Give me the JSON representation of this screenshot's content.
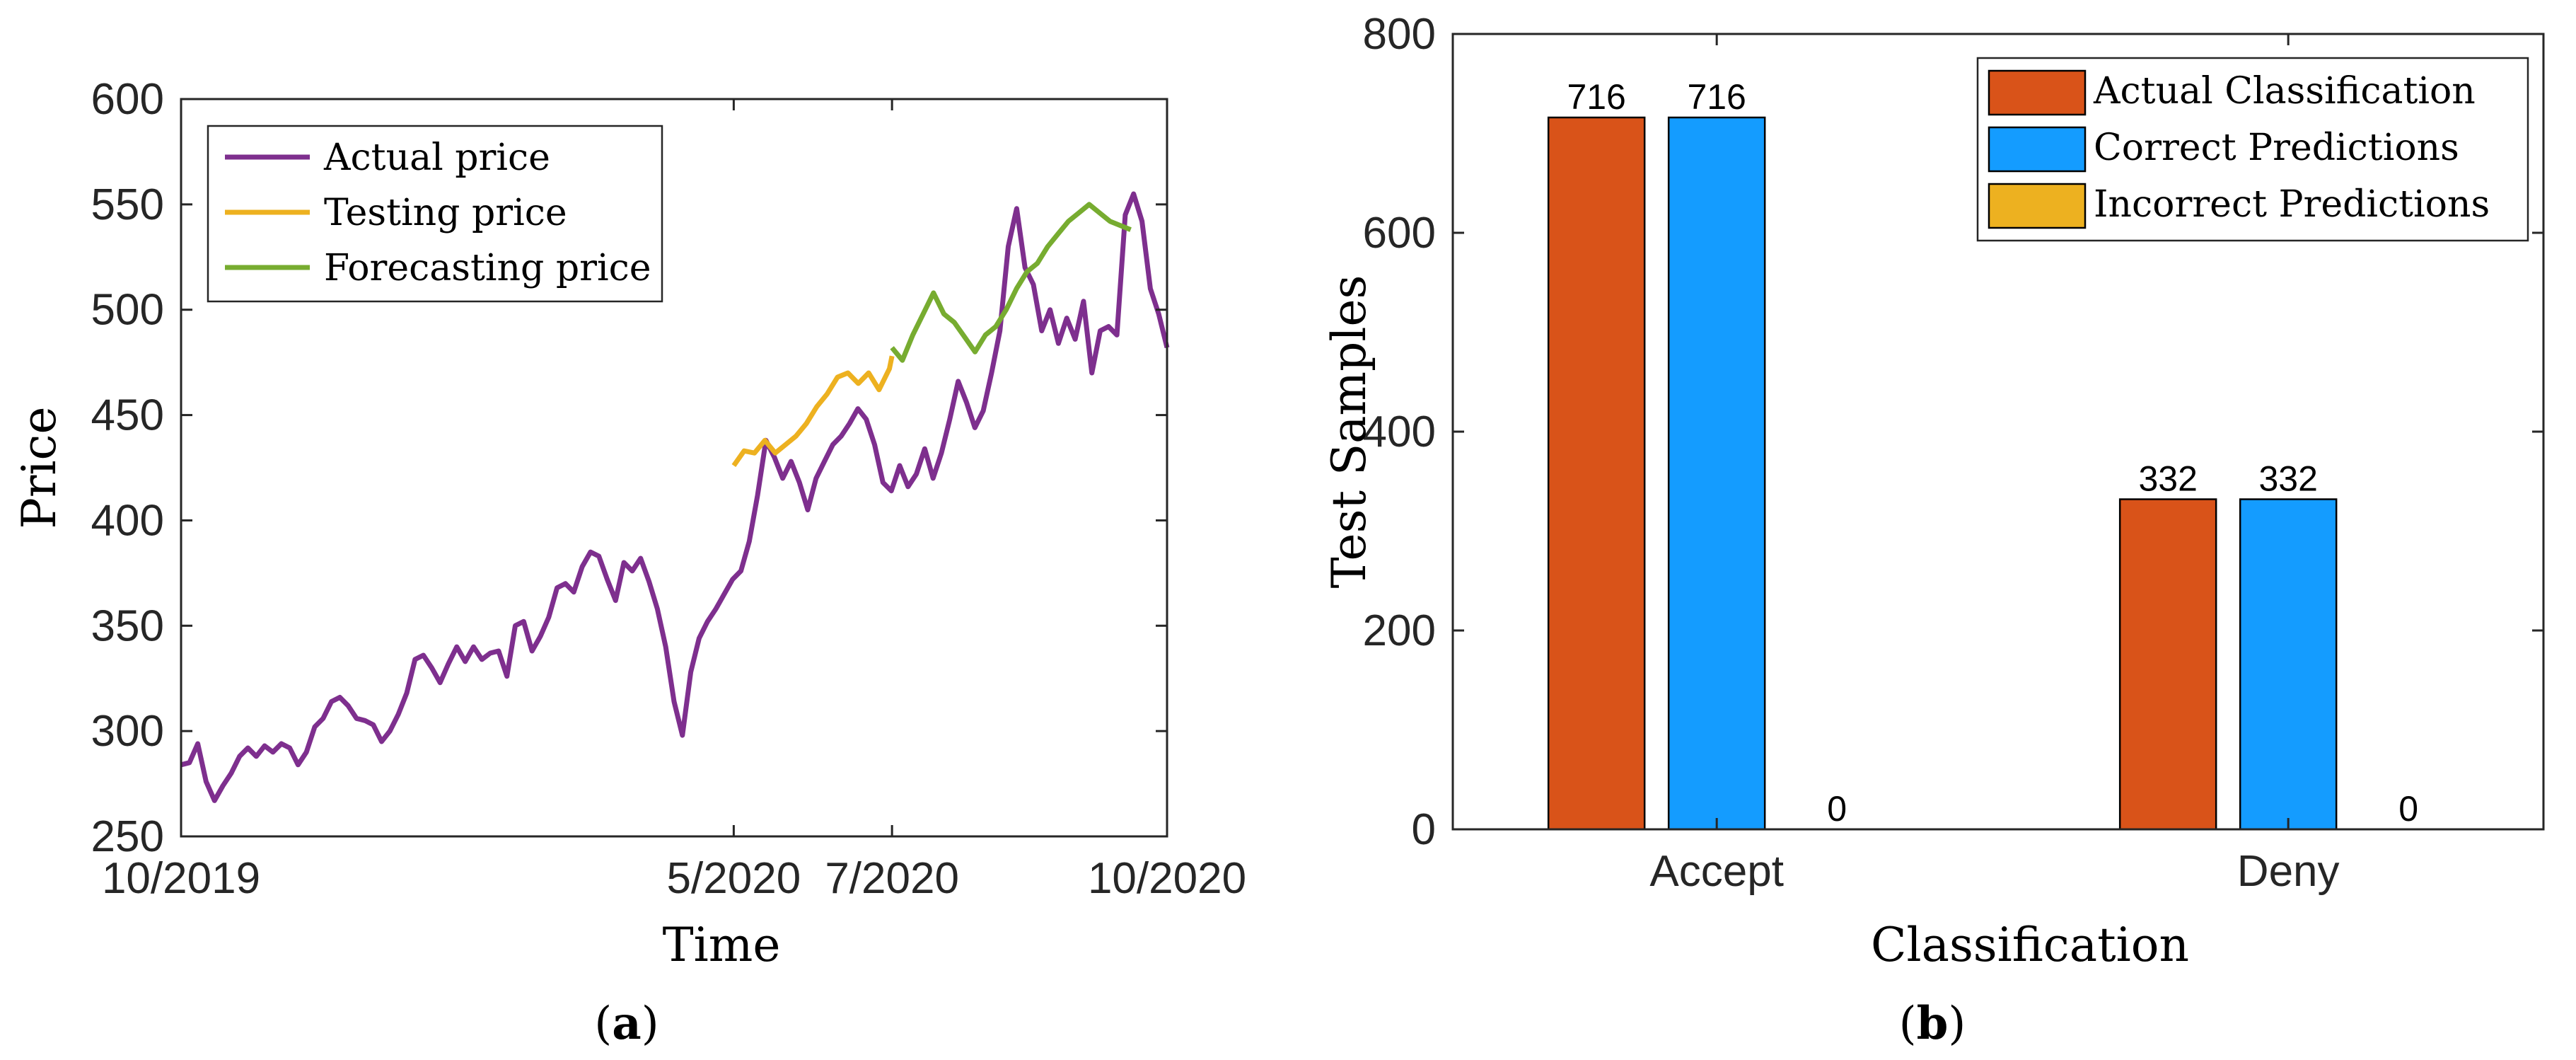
{
  "chart_data": [
    {
      "panel": "(a)",
      "panel_letter": "a",
      "type": "line",
      "xlabel": "Time",
      "ylabel": "Price",
      "ylim": [
        250,
        600
      ],
      "yticks": [
        250,
        300,
        350,
        400,
        450,
        500,
        550,
        600
      ],
      "xlim": [
        "2019-10",
        "2020-10"
      ],
      "xticks": [
        {
          "label": "10/2019",
          "date": "2019-10"
        },
        {
          "label": "5/2020",
          "date": "2020-05"
        },
        {
          "label": "7/2020",
          "date": "2020-07"
        },
        {
          "label": "10/2020",
          "date": "2020-10"
        }
      ],
      "grid": false,
      "legend_position": "top-left",
      "series": [
        {
          "name": "Actual price",
          "color": "#7E2F8E",
          "points": [
            [
              "2019-10-01",
              284
            ],
            [
              "2019-10-05",
              285
            ],
            [
              "2019-10-09",
              294
            ],
            [
              "2019-10-13",
              276
            ],
            [
              "2019-10-17",
              267
            ],
            [
              "2019-10-21",
              274
            ],
            [
              "2019-10-25",
              280
            ],
            [
              "2019-10-29",
              288
            ],
            [
              "2019-11-02",
              292
            ],
            [
              "2019-11-06",
              288
            ],
            [
              "2019-11-10",
              293
            ],
            [
              "2019-11-14",
              290
            ],
            [
              "2019-11-18",
              294
            ],
            [
              "2019-11-22",
              292
            ],
            [
              "2019-11-26",
              284
            ],
            [
              "2019-11-30",
              290
            ],
            [
              "2019-12-04",
              302
            ],
            [
              "2019-12-08",
              306
            ],
            [
              "2019-12-12",
              314
            ],
            [
              "2019-12-16",
              316
            ],
            [
              "2019-12-20",
              312
            ],
            [
              "2019-12-24",
              306
            ],
            [
              "2019-12-28",
              305
            ],
            [
              "2020-01-01",
              303
            ],
            [
              "2020-01-05",
              295
            ],
            [
              "2020-01-09",
              300
            ],
            [
              "2020-01-13",
              308
            ],
            [
              "2020-01-17",
              318
            ],
            [
              "2020-01-21",
              334
            ],
            [
              "2020-01-25",
              336
            ],
            [
              "2020-01-29",
              330
            ],
            [
              "2020-02-02",
              323
            ],
            [
              "2020-02-06",
              332
            ],
            [
              "2020-02-10",
              340
            ],
            [
              "2020-02-14",
              333
            ],
            [
              "2020-02-18",
              340
            ],
            [
              "2020-02-22",
              334
            ],
            [
              "2020-02-26",
              337
            ],
            [
              "2020-03-01",
              338
            ],
            [
              "2020-03-05",
              326
            ],
            [
              "2020-03-09",
              350
            ],
            [
              "2020-03-13",
              352
            ],
            [
              "2020-03-17",
              338
            ],
            [
              "2020-03-21",
              345
            ],
            [
              "2020-03-25",
              354
            ],
            [
              "2020-03-29",
              368
            ],
            [
              "2020-04-02",
              370
            ],
            [
              "2020-04-06",
              366
            ],
            [
              "2020-04-10",
              378
            ],
            [
              "2020-04-14",
              385
            ],
            [
              "2020-04-18",
              383
            ],
            [
              "2020-04-22",
              372
            ],
            [
              "2020-04-26",
              362
            ],
            [
              "2020-04-30",
              380
            ],
            [
              "2020-03-03",
              376
            ],
            [
              "2020-03-07",
              382
            ],
            [
              "2020-03-11",
              371
            ],
            [
              "2020-03-15",
              358
            ],
            [
              "2020-03-19",
              340
            ],
            [
              "2020-03-23",
              314
            ],
            [
              "2020-03-27",
              298
            ],
            [
              "2020-03-31",
              328
            ],
            [
              "2020-04-04",
              344
            ],
            [
              "2020-04-08",
              352
            ],
            [
              "2020-04-12",
              358
            ],
            [
              "2020-04-16",
              365
            ],
            [
              "2020-04-20",
              372
            ],
            [
              "2020-04-24",
              376
            ],
            [
              "2020-04-28",
              390
            ],
            [
              "2020-04-02",
              412
            ],
            [
              "2020-04-06",
              438
            ],
            [
              "2020-04-10",
              430
            ],
            [
              "2020-04-14",
              420
            ],
            [
              "2020-04-18",
              428
            ],
            [
              "2020-04-22",
              418
            ],
            [
              "2020-04-26",
              405
            ],
            [
              "2020-04-30",
              420
            ],
            [
              "2020-05-04",
              428
            ],
            [
              "2020-05-08",
              436
            ],
            [
              "2020-05-12",
              440
            ],
            [
              "2020-05-16",
              446
            ],
            [
              "2020-05-20",
              453
            ],
            [
              "2020-05-24",
              448
            ],
            [
              "2020-05-28",
              436
            ],
            [
              "2020-06-01",
              418
            ],
            [
              "2020-06-05",
              414
            ],
            [
              "2020-06-09",
              426
            ],
            [
              "2020-06-13",
              416
            ],
            [
              "2020-06-17",
              422
            ],
            [
              "2020-06-21",
              434
            ],
            [
              "2020-06-25",
              420
            ],
            [
              "2020-06-29",
              432
            ],
            [
              "2020-07-03",
              448
            ],
            [
              "2020-07-07",
              466
            ],
            [
              "2020-07-11",
              456
            ],
            [
              "2020-07-15",
              444
            ],
            [
              "2020-07-19",
              452
            ],
            [
              "2020-07-23",
              470
            ],
            [
              "2020-07-27",
              490
            ],
            [
              "2020-07-31",
              530
            ],
            [
              "2020-08-04",
              548
            ],
            [
              "2020-08-08",
              520
            ],
            [
              "2020-08-12",
              512
            ],
            [
              "2020-08-16",
              490
            ],
            [
              "2020-08-20",
              500
            ],
            [
              "2020-08-24",
              484
            ],
            [
              "2020-08-28",
              496
            ],
            [
              "2020-09-01",
              486
            ],
            [
              "2020-09-05",
              504
            ],
            [
              "2020-09-09",
              470
            ],
            [
              "2020-09-13",
              490
            ],
            [
              "2020-09-17",
              492
            ],
            [
              "2020-09-21",
              488
            ],
            [
              "2020-09-25",
              545
            ],
            [
              "2020-09-29",
              555
            ],
            [
              "2020-10-03",
              542
            ],
            [
              "2020-10-07",
              510
            ],
            [
              "2020-10-11",
              498
            ],
            [
              "2020-10-15",
              482
            ]
          ]
        },
        {
          "name": "Testing price",
          "color": "#EDB120",
          "points": [
            [
              "2020-05-01",
              426
            ],
            [
              "2020-05-05",
              433
            ],
            [
              "2020-05-09",
              432
            ],
            [
              "2020-05-13",
              438
            ],
            [
              "2020-05-17",
              432
            ],
            [
              "2020-05-21",
              436
            ],
            [
              "2020-05-25",
              440
            ],
            [
              "2020-05-29",
              446
            ],
            [
              "2020-06-02",
              454
            ],
            [
              "2020-06-06",
              460
            ],
            [
              "2020-06-10",
              468
            ],
            [
              "2020-06-14",
              470
            ],
            [
              "2020-06-18",
              465
            ],
            [
              "2020-06-22",
              470
            ],
            [
              "2020-06-26",
              462
            ],
            [
              "2020-06-30",
              472
            ],
            [
              "2020-07-01",
              478
            ]
          ]
        },
        {
          "name": "Forecasting price",
          "color": "#77AC30",
          "points": [
            [
              "2020-07-01",
              482
            ],
            [
              "2020-07-05",
              476
            ],
            [
              "2020-07-09",
              488
            ],
            [
              "2020-07-13",
              498
            ],
            [
              "2020-07-17",
              508
            ],
            [
              "2020-07-21",
              498
            ],
            [
              "2020-07-25",
              494
            ],
            [
              "2020-07-29",
              487
            ],
            [
              "2020-08-02",
              480
            ],
            [
              "2020-08-06",
              488
            ],
            [
              "2020-08-10",
              492
            ],
            [
              "2020-08-14",
              500
            ],
            [
              "2020-08-18",
              510
            ],
            [
              "2020-08-22",
              518
            ],
            [
              "2020-08-26",
              522
            ],
            [
              "2020-08-30",
              530
            ],
            [
              "2020-09-03",
              536
            ],
            [
              "2020-09-07",
              542
            ],
            [
              "2020-09-11",
              546
            ],
            [
              "2020-09-15",
              550
            ],
            [
              "2020-09-19",
              546
            ],
            [
              "2020-09-23",
              542
            ],
            [
              "2020-10-01",
              538
            ]
          ]
        }
      ]
    },
    {
      "panel": "(b)",
      "panel_letter": "b",
      "type": "bar",
      "xlabel": "Classification",
      "ylabel": "Test Samples",
      "ylim": [
        0,
        800
      ],
      "yticks": [
        0,
        200,
        400,
        600,
        800
      ],
      "categories": [
        "Accept",
        "Deny"
      ],
      "grid": false,
      "legend_position": "top-right",
      "series": [
        {
          "name": "Actual Classification",
          "color": "#D95319",
          "values": [
            716,
            332
          ]
        },
        {
          "name": "Correct Predictions",
          "color": "#149CFF",
          "values": [
            716,
            332
          ]
        },
        {
          "name": "Incorrect Predictions",
          "color": "#EDB120",
          "values": [
            0,
            0
          ]
        }
      ]
    }
  ]
}
